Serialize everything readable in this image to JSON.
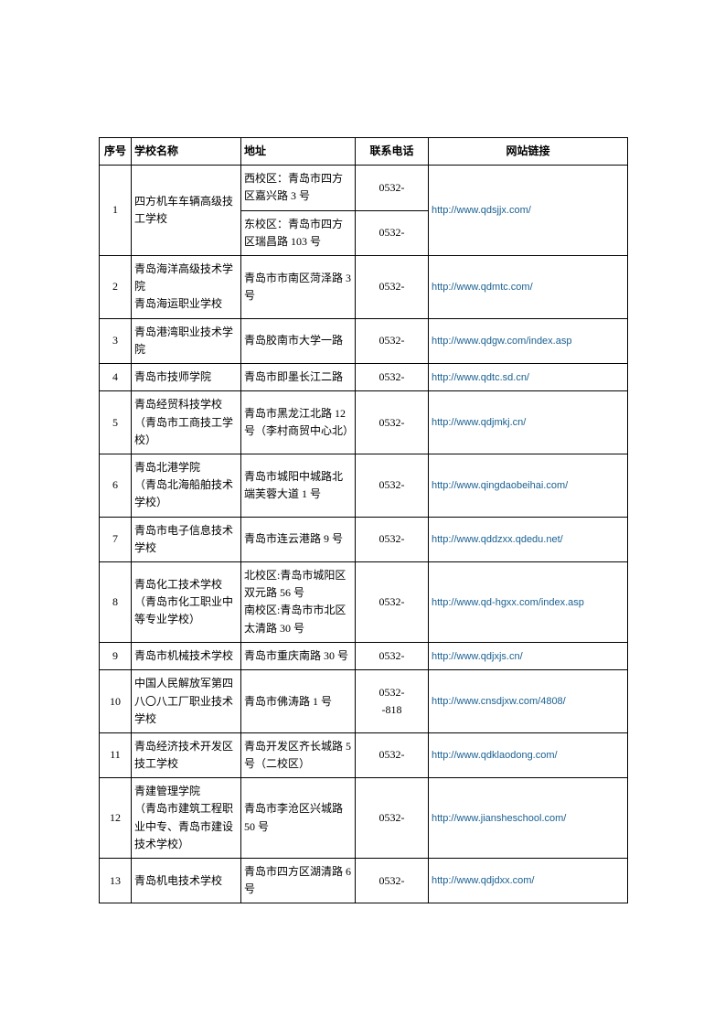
{
  "table": {
    "headers": {
      "seq": "序号",
      "name": "学校名称",
      "addr": "地址",
      "phone": "联系电话",
      "url": "网站链接"
    },
    "rows": [
      {
        "seq": "1",
        "name": "四方机车车辆高级技工学校",
        "addresses": [
          {
            "addr": "西校区：青岛市四方区嘉兴路 3 号",
            "phone": "0532-"
          },
          {
            "addr": "东校区：青岛市四方区瑞昌路 103 号",
            "phone": "0532-"
          }
        ],
        "url": "http://www.qdsjjx.com/"
      },
      {
        "seq": "2",
        "name": "青岛海洋高级技术学院\n青岛海运职业学校",
        "addr": "青岛市市南区菏泽路 3号",
        "phone": "0532-",
        "url": "http://www.qdmtc.com/"
      },
      {
        "seq": "3",
        "name": "青岛港湾职业技术学院",
        "addr": "青岛胶南市大学一路",
        "phone": "0532-",
        "url": "http://www.qdgw.com/index.asp"
      },
      {
        "seq": "4",
        "name": "青岛市技师学院",
        "addr": "青岛市即墨长江二路",
        "phone": "0532-",
        "url": "http://www.qdtc.sd.cn/"
      },
      {
        "seq": "5",
        "name": "青岛经贸科技学校（青岛市工商技工学校）",
        "addr": "青岛市黑龙江北路 12号（李村商贸中心北）",
        "phone": "0532-",
        "url": "http://www.qdjmkj.cn/"
      },
      {
        "seq": "6",
        "name": "青岛北港学院\n（青岛北海船舶技术学校）",
        "addr": "青岛市城阳中城路北端芙蓉大道 1 号",
        "phone": "0532-",
        "url": "http://www.qingdaobeihai.com/"
      },
      {
        "seq": "7",
        "name": "青岛市电子信息技术学校",
        "addr": "青岛市连云港路 9 号",
        "phone": "0532-",
        "url": "http://www.qddzxx.qdedu.net/"
      },
      {
        "seq": "8",
        "name": "青岛化工技术学校（青岛市化工职业中等专业学校）",
        "addr": "北校区:青岛市城阳区双元路 56 号\n南校区:青岛市市北区太清路 30 号",
        "phone": "0532-",
        "url": "http://www.qd-hgxx.com/index.asp"
      },
      {
        "seq": "9",
        "name": "青岛市机械技术学校",
        "addr": "青岛市重庆南路 30 号",
        "phone": "0532-",
        "url": "http://www.qdjxjs.cn/"
      },
      {
        "seq": "10",
        "name": "中国人民解放军第四八〇八工厂职业技术学校",
        "addr": "青岛市佛涛路 1 号",
        "phone": "0532-\n-818",
        "url": "http://www.cnsdjxw.com/4808/"
      },
      {
        "seq": "11",
        "name": "青岛经济技术开发区技工学校",
        "addr": "青岛开发区齐长城路 5号（二校区）",
        "phone": "0532-",
        "url": "http://www.qdklaodong.com/"
      },
      {
        "seq": "12",
        "name": "青建管理学院\n（青岛市建筑工程职业中专、青岛市建设技术学校）",
        "addr": "青岛市李沧区兴城路50 号",
        "phone": "0532-",
        "url": "http://www.jiansheschool.com/"
      },
      {
        "seq": "13",
        "name": "青岛机电技术学校",
        "addr": "青岛市四方区湖清路 6号",
        "phone": "0532-",
        "url": "http://www.qdjdxx.com/"
      }
    ]
  }
}
